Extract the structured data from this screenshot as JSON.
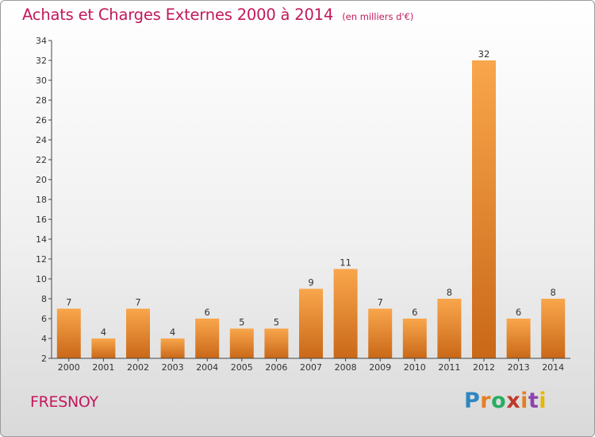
{
  "chart_data": {
    "type": "bar",
    "title": "Achats et Charges Externes 2000 à 2014",
    "subtitle": "(en milliers d'€)",
    "categories": [
      "2000",
      "2001",
      "2002",
      "2003",
      "2004",
      "2005",
      "2006",
      "2007",
      "2008",
      "2009",
      "2010",
      "2011",
      "2012",
      "2013",
      "2014"
    ],
    "values": [
      7,
      4,
      7,
      4,
      6,
      5,
      5,
      9,
      11,
      7,
      6,
      8,
      32,
      6,
      8
    ],
    "ylim": [
      2,
      34
    ],
    "yticks": [
      2,
      4,
      6,
      8,
      10,
      12,
      14,
      16,
      18,
      20,
      22,
      24,
      26,
      28,
      30,
      32,
      34
    ],
    "xlabel": "",
    "ylabel": "",
    "bar_color_top": "#f9a64c",
    "bar_color_bottom": "#c96818"
  },
  "footer": {
    "commune": "FRESNOY",
    "logo": [
      "P",
      "r",
      "o",
      "x",
      "i",
      "t",
      "i"
    ],
    "logo_colors": [
      "#2e86c1",
      "#e67e22",
      "#27ae60",
      "#c0392b",
      "#e67e22",
      "#8e44ad",
      "#e6b800"
    ]
  },
  "colors": {
    "accent": "#c2185b"
  }
}
